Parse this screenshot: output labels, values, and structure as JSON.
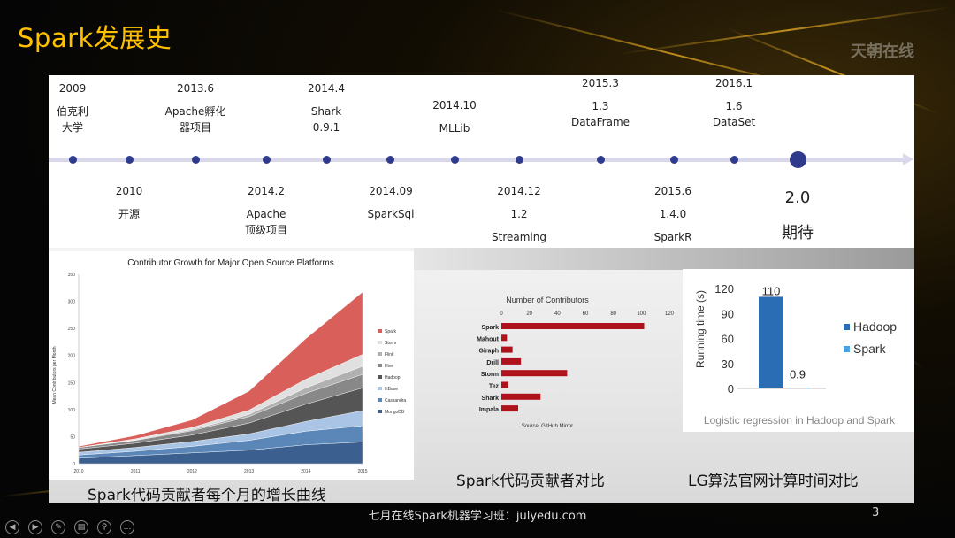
{
  "slide": {
    "title": "Spark发展史",
    "brand": "天朝在线",
    "footer": "七月在线Spark机器学习班：julyedu.com",
    "page_number": "3"
  },
  "timeline": {
    "top": [
      {
        "date": "2009",
        "l1": "伯克利",
        "l2": "大学"
      },
      {
        "date": "2013.6",
        "l1": "Apache孵化",
        "l2": "器项目"
      },
      {
        "date": "2014.4",
        "l1": "Shark",
        "l2": "0.9.1"
      },
      {
        "date": "2014.10",
        "l1": "MLLib",
        "l2": ""
      },
      {
        "date": "2015.3",
        "l1": "1.3",
        "l2": "DataFrame"
      },
      {
        "date": "2016.1",
        "l1": "1.6",
        "l2": "DataSet"
      }
    ],
    "bottom": [
      {
        "date": "2010",
        "l1": "开源",
        "l2": ""
      },
      {
        "date": "2014.2",
        "l1": "Apache",
        "l2": "顶级项目"
      },
      {
        "date": "2014.09",
        "l1": "SparkSql",
        "l2": ""
      },
      {
        "date": "2014.12",
        "l1": "1.2",
        "l2": "Streaming"
      },
      {
        "date": "2015.6",
        "l1": "1.4.0",
        "l2": "SparkR"
      },
      {
        "date": "2.0",
        "l1": "期待",
        "l2": ""
      }
    ]
  },
  "captions": {
    "area": "Spark代码贡献者每个月的增长曲线",
    "bar": "Spark代码贡献者对比",
    "lr": "LG算法官网计算时间对比"
  },
  "chart_data": [
    {
      "type": "area",
      "title": "Contributor Growth for Major Open Source Platforms",
      "ylabel": "Mean Contributors per Month",
      "x": [
        "2010",
        "2011",
        "2012",
        "2013",
        "2014",
        "2015"
      ],
      "ylim": [
        0,
        350
      ],
      "yticks": [
        "0",
        "50",
        "100",
        "150",
        "200",
        "250",
        "300",
        "350"
      ],
      "series": [
        {
          "name": "MongoDB",
          "color": "#3b5f8f",
          "values": [
            10,
            15,
            20,
            25,
            35,
            40
          ]
        },
        {
          "name": "Cassandra",
          "color": "#5a86b8",
          "values": [
            6,
            8,
            12,
            18,
            25,
            30
          ]
        },
        {
          "name": "HBase",
          "color": "#a9c4e4",
          "values": [
            5,
            7,
            9,
            12,
            18,
            28
          ]
        },
        {
          "name": "Hadoop",
          "color": "#555555",
          "values": [
            6,
            8,
            12,
            20,
            32,
            42
          ]
        },
        {
          "name": "Hive",
          "color": "#888888",
          "values": [
            3,
            5,
            8,
            12,
            20,
            25
          ]
        },
        {
          "name": "Flink",
          "color": "#b0b0b0",
          "values": [
            0,
            1,
            2,
            4,
            10,
            15
          ]
        },
        {
          "name": "Storm",
          "color": "#e0e0e0",
          "values": [
            0,
            2,
            4,
            8,
            16,
            22
          ]
        },
        {
          "name": "Spark",
          "color": "#d9605a",
          "values": [
            2,
            6,
            14,
            35,
            75,
            115
          ]
        }
      ]
    },
    {
      "type": "bar",
      "title": "Number of Contributors",
      "source": "Source: GitHub Mirror",
      "categories": [
        "Spark",
        "Mahout",
        "Giraph",
        "Drill",
        "Storm",
        "Tez",
        "Shark",
        "Impala"
      ],
      "values": [
        102,
        4,
        8,
        14,
        47,
        5,
        28,
        12
      ],
      "xlim": [
        0,
        120
      ],
      "xticks": [
        "0",
        "20",
        "40",
        "60",
        "80",
        "100",
        "120"
      ],
      "color": "#b0121c"
    },
    {
      "type": "bar",
      "title": "Logistic regression in Hadoop and Spark",
      "ylabel": "Running time (s)",
      "categories": [
        "Hadoop",
        "Spark"
      ],
      "values": [
        110,
        0.9
      ],
      "value_labels": [
        "110",
        "0.9"
      ],
      "ylim": [
        0,
        120
      ],
      "yticks": [
        "0",
        "30",
        "60",
        "90",
        "120"
      ],
      "legend": [
        "Hadoop",
        "Spark"
      ],
      "colors": [
        "#2a6db5",
        "#4aa3e0"
      ]
    }
  ]
}
